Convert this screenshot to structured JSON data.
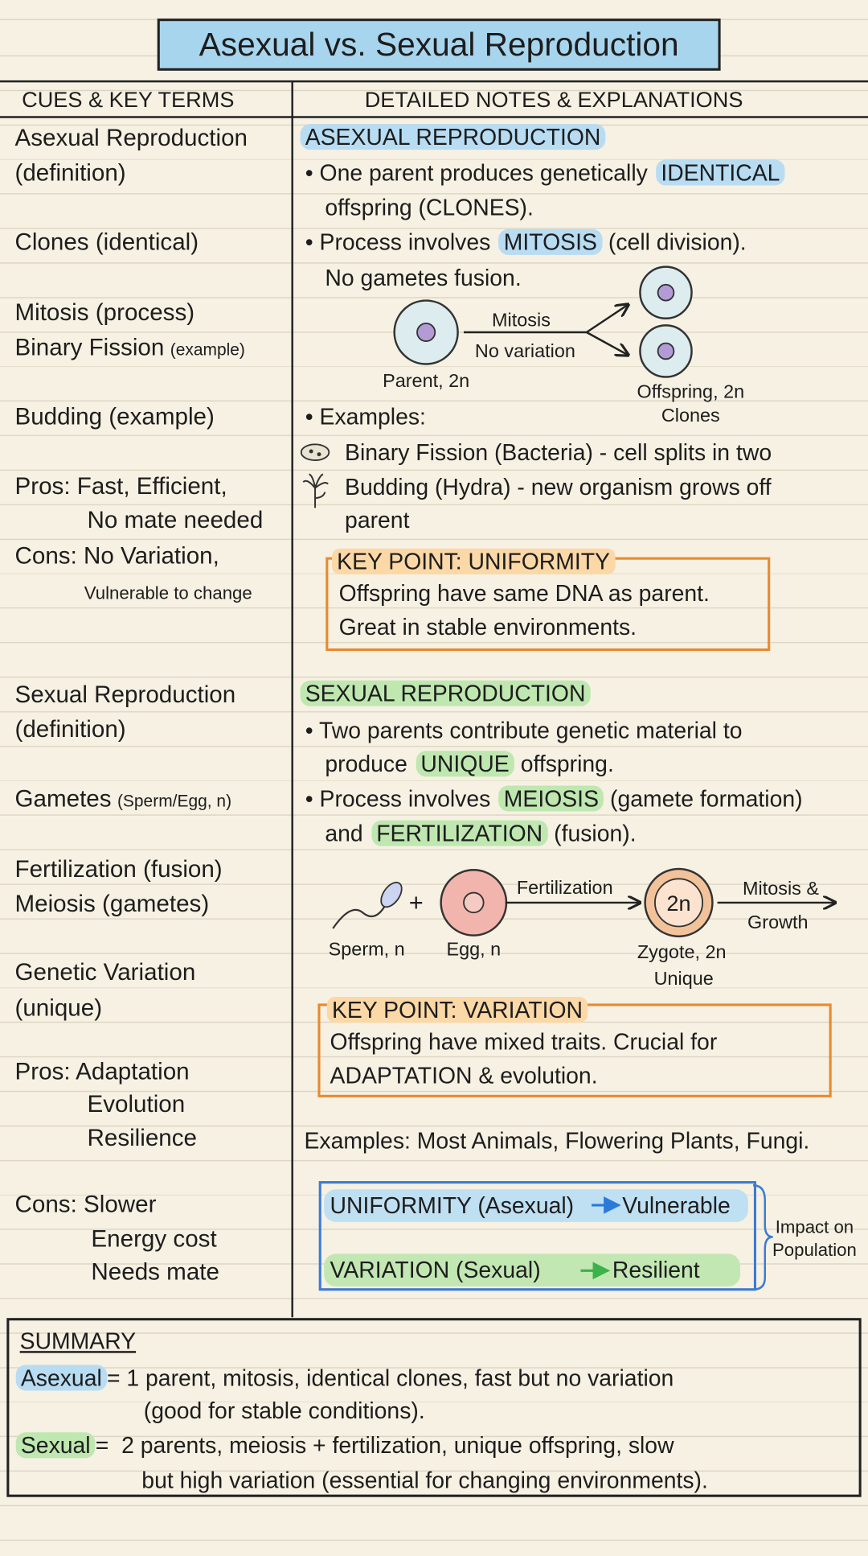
{
  "title": "Asexual vs. Sexual Reproduction",
  "headers": {
    "cues": "CUES & KEY TERMS",
    "notes": "DETAILED NOTES & EXPLANATIONS"
  },
  "cues": [
    "Asexual Reproduction",
    "(definition)",
    "Clones (identical)",
    "Mitosis (process)",
    "Binary Fission",
    "(example)",
    "Budding (example)",
    "Pros: Fast, Efficient,",
    "No mate needed",
    "Cons: No Variation,",
    "Vulnerable to change",
    "Sexual Reproduction",
    "(definition)",
    "Gametes",
    "(Sperm/Egg, n)",
    "Fertilization (fusion)",
    "Meiosis (gametes)",
    "Genetic Variation",
    "(unique)",
    "Pros: Adaptation",
    "Evolution",
    "Resilience",
    "Cons: Slower",
    "Energy cost",
    "Needs mate"
  ],
  "asexual": {
    "heading": "ASEXUAL REPRODUCTION",
    "bullets": [
      [
        "• One parent produces genetically ",
        "IDENTICAL",
        "offspring (CLONES)."
      ],
      [
        "• Process involves ",
        "MITOSIS",
        " (cell division).",
        "No gametes fusion."
      ]
    ],
    "diagram": {
      "process": "Mitosis",
      "note": "No variation",
      "parent": "Parent, 2n",
      "offspring": "Offspring, 2n",
      "offspring_note": "Clones"
    },
    "examples": {
      "label": "• Examples:",
      "items": [
        "Binary Fission (Bacteria) - cell splits in two",
        "Budding (Hydra) - new organism grows off",
        "parent"
      ]
    },
    "key_point": {
      "title": "KEY POINT: UNIFORMITY",
      "lines": [
        "Offspring have same DNA as parent.",
        "Great in stable environments."
      ]
    }
  },
  "sexual": {
    "heading": "SEXUAL REPRODUCTION",
    "bullets": [
      [
        "• Two parents contribute genetic material to",
        "produce ",
        "UNIQUE",
        " offspring."
      ],
      [
        "• Process involves ",
        "MEIOSIS",
        " (gamete formation)",
        "and ",
        "FERTILIZATION",
        " (fusion)."
      ]
    ],
    "diagram": {
      "sperm": "Sperm, n",
      "plus": "+",
      "egg": "Egg, n",
      "process": "Fertilization",
      "zygote_label": "2n",
      "zygote": "Zygote, 2n",
      "zygote_note": "Unique",
      "next": "Mitosis &",
      "next_note": "Growth"
    },
    "key_point": {
      "title": "KEY POINT: VARIATION",
      "lines": [
        "Offspring have mixed traits. Crucial for",
        "ADAPTATION & evolution."
      ]
    }
  },
  "examples": "Examples: Most Animals, Flowering Plants, Fungi.",
  "impact": {
    "rows": [
      [
        "UNIFORMITY (Asexual)",
        "Vulnerable"
      ],
      [
        "VARIATION (Sexual)",
        "Resilient"
      ]
    ],
    "label": [
      "Impact on",
      "Population"
    ]
  },
  "summary": {
    "title": "SUMMARY",
    "rows": [
      {
        "term": "Asexual",
        "text": [
          "= 1 parent, mitosis, identical clones, fast but no variation",
          "(good for stable conditions)."
        ]
      },
      {
        "term": "Sexual",
        "text": [
          "=  2 parents, meiosis + fertilization, unique offspring, slow",
          "but high variation (essential for changing environments)."
        ]
      }
    ]
  }
}
